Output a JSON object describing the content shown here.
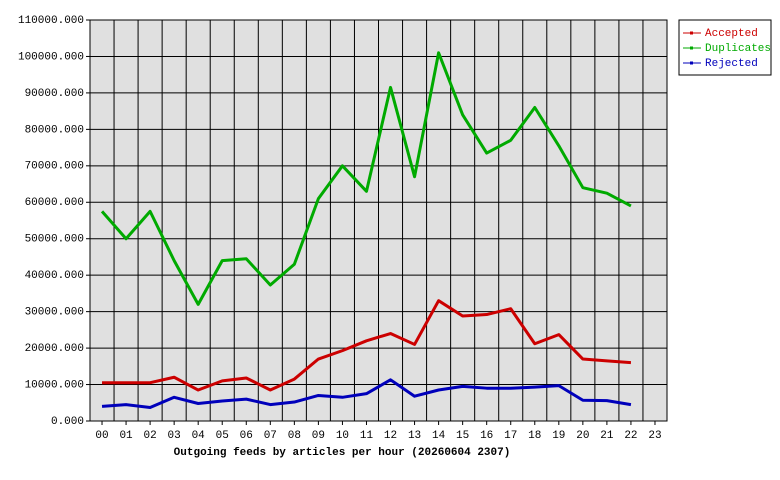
{
  "chart_data": {
    "type": "line",
    "title": "Outgoing feeds by articles per hour (20260604 2307)",
    "categories": [
      "00",
      "01",
      "02",
      "03",
      "04",
      "05",
      "06",
      "07",
      "08",
      "09",
      "10",
      "11",
      "12",
      "13",
      "14",
      "15",
      "16",
      "17",
      "18",
      "19",
      "20",
      "21",
      "22",
      "23"
    ],
    "series": [
      {
        "name": "Accepted",
        "color": "#cc0000",
        "values": [
          10500,
          10500,
          10500,
          12000,
          8500,
          11000,
          11800,
          8500,
          11500,
          17000,
          19300,
          22000,
          24000,
          21000,
          33000,
          28800,
          29200,
          30800,
          21200,
          23700,
          17000,
          16500,
          16000,
          null
        ]
      },
      {
        "name": "Duplicates",
        "color": "#00aa00",
        "values": [
          57500,
          50000,
          57500,
          44000,
          32000,
          44000,
          44500,
          37300,
          43000,
          61000,
          70000,
          63000,
          91500,
          67000,
          101000,
          84000,
          73500,
          77000,
          86000,
          75500,
          64000,
          62500,
          59000,
          null
        ]
      },
      {
        "name": "Rejected",
        "color": "#0000bb",
        "values": [
          4000,
          4500,
          3700,
          6500,
          4800,
          5500,
          6000,
          4500,
          5200,
          7000,
          6500,
          7500,
          11300,
          6800,
          8500,
          9500,
          9000,
          9000,
          9300,
          9700,
          5700,
          5600,
          4500,
          null
        ]
      }
    ],
    "ylim": [
      0,
      110000
    ],
    "yticks": [
      {
        "value": 0,
        "label": "0.000"
      },
      {
        "value": 10000,
        "label": "10000.000"
      },
      {
        "value": 20000,
        "label": "20000.000"
      },
      {
        "value": 30000,
        "label": "30000.000"
      },
      {
        "value": 40000,
        "label": "40000.000"
      },
      {
        "value": 50000,
        "label": "50000.000"
      },
      {
        "value": 60000,
        "label": "60000.000"
      },
      {
        "value": 70000,
        "label": "70000.000"
      },
      {
        "value": 80000,
        "label": "80000.000"
      },
      {
        "value": 90000,
        "label": "90000.000"
      },
      {
        "value": 100000,
        "label": "100000.000"
      },
      {
        "value": 110000,
        "label": "110000.000"
      }
    ],
    "grid": true
  }
}
